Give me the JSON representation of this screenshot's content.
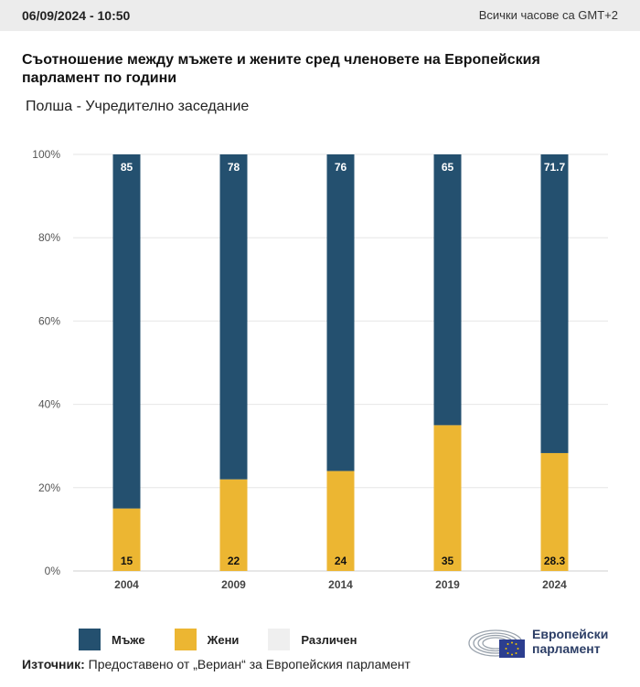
{
  "header": {
    "date": "06/09/2024 - 10:50",
    "timezone": "Всички часове са GMT+2"
  },
  "title": "Съотношение между мъжете и жените сред членовете на Европейския парламент по години",
  "subtitle": "Полша - Учредително заседание",
  "colors": {
    "men": "#24506f",
    "women": "#ecb632",
    "other": "#efefef",
    "grid": "#e6e6e6",
    "axis_text": "#555555"
  },
  "chart_data": {
    "type": "bar",
    "stacked": true,
    "categories": [
      "2004",
      "2009",
      "2014",
      "2019",
      "2024"
    ],
    "series": [
      {
        "name": "Мъже",
        "values": [
          85,
          78,
          76,
          65,
          71.7
        ]
      },
      {
        "name": "Жени",
        "values": [
          15,
          22,
          24,
          35,
          28.3
        ]
      }
    ],
    "data_labels": {
      "men": [
        "85",
        "78",
        "76",
        "65",
        "71.7"
      ],
      "women": [
        "15",
        "22",
        "24",
        "35",
        "28.3"
      ]
    },
    "y_ticks": [
      "0%",
      "20%",
      "40%",
      "60%",
      "80%",
      "100%"
    ],
    "ylim": [
      0,
      100
    ],
    "grid": true,
    "legend_position": "bottom-left"
  },
  "legend": {
    "men": "Мъже",
    "women": "Жени",
    "other": "Различен"
  },
  "source": {
    "label": "Източник:",
    "text": " Предоставено от „Вериан“ за Европейския парламент"
  },
  "logo": {
    "line1": "Европейски",
    "line2": "парламент"
  }
}
